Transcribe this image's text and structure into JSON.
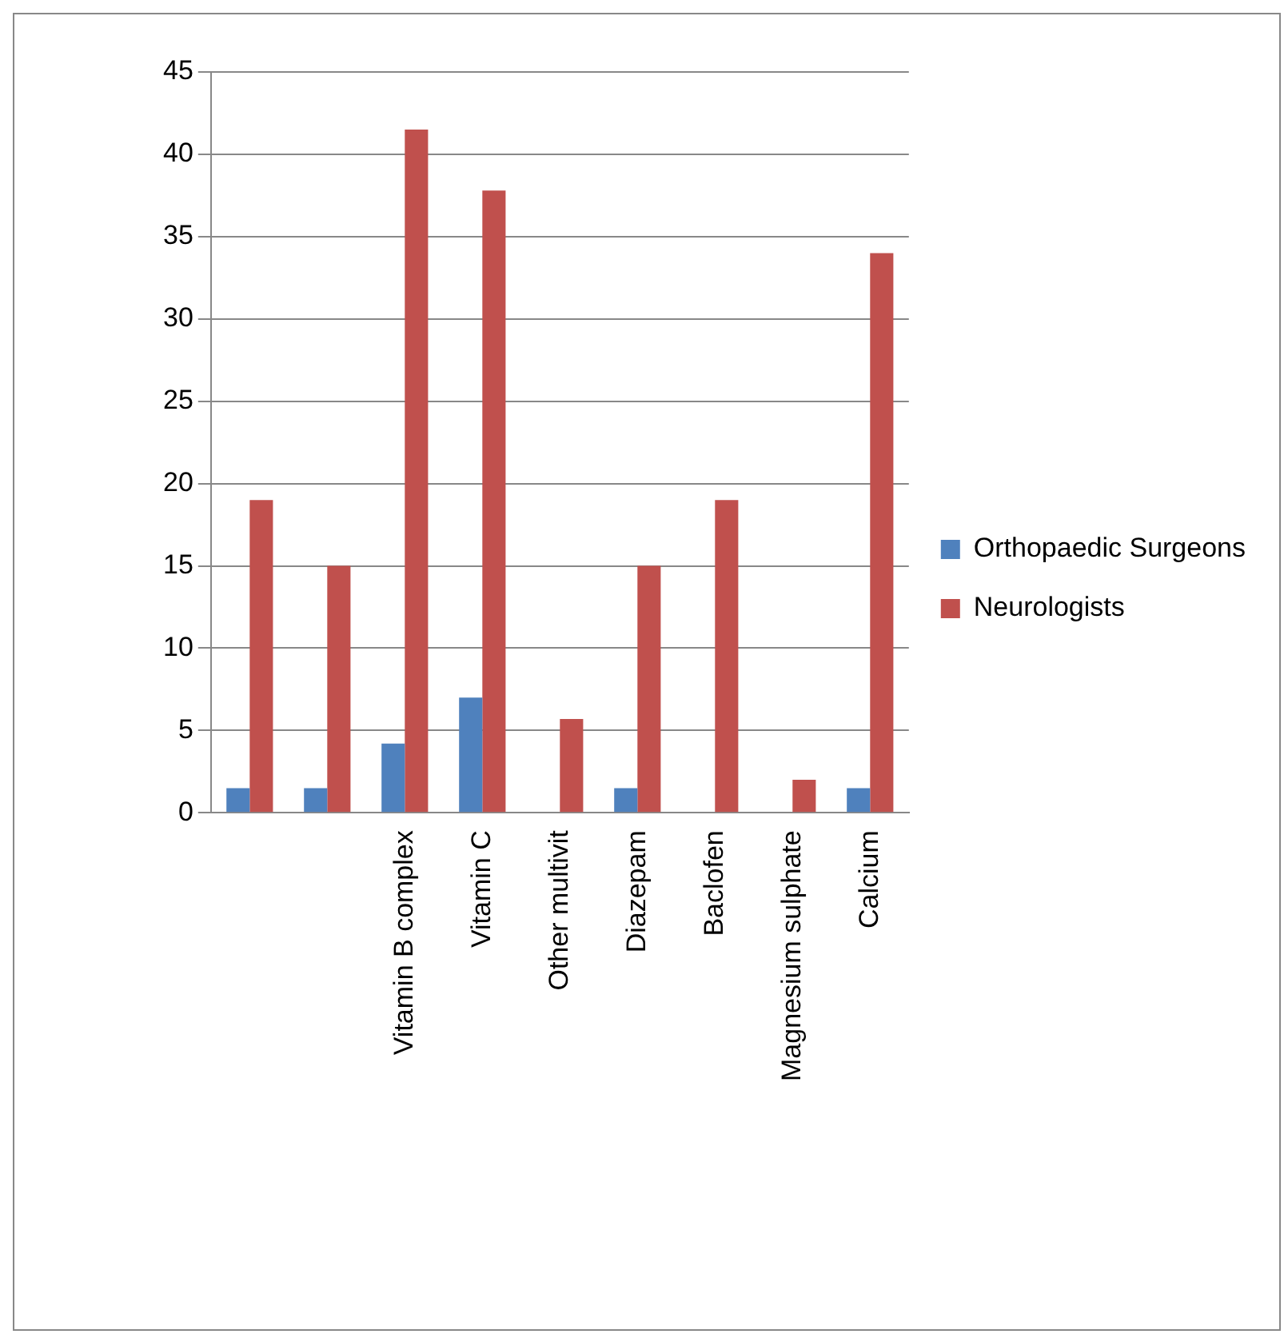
{
  "chart_data": {
    "type": "bar",
    "categories": [
      null,
      null,
      "Vitamin B complex",
      "Vitamin C",
      "Other multivit",
      "Diazepam",
      "Baclofen",
      "Magnesium sulphate",
      "Calcium"
    ],
    "series": [
      {
        "name": "Orthopaedic Surgeons",
        "color": "#4f81bd",
        "values": [
          1.5,
          1.5,
          4.2,
          7,
          null,
          1.5,
          null,
          null,
          1.5
        ]
      },
      {
        "name": "Neurologists",
        "color": "#c0504d",
        "values": [
          19,
          15,
          41.5,
          37.8,
          5.7,
          15,
          19,
          2,
          34
        ]
      }
    ],
    "ylim": [
      0,
      45
    ],
    "yticks": [
      0,
      5,
      10,
      15,
      20,
      25,
      30,
      35,
      40,
      45
    ],
    "grid": "y",
    "legend": "right"
  }
}
